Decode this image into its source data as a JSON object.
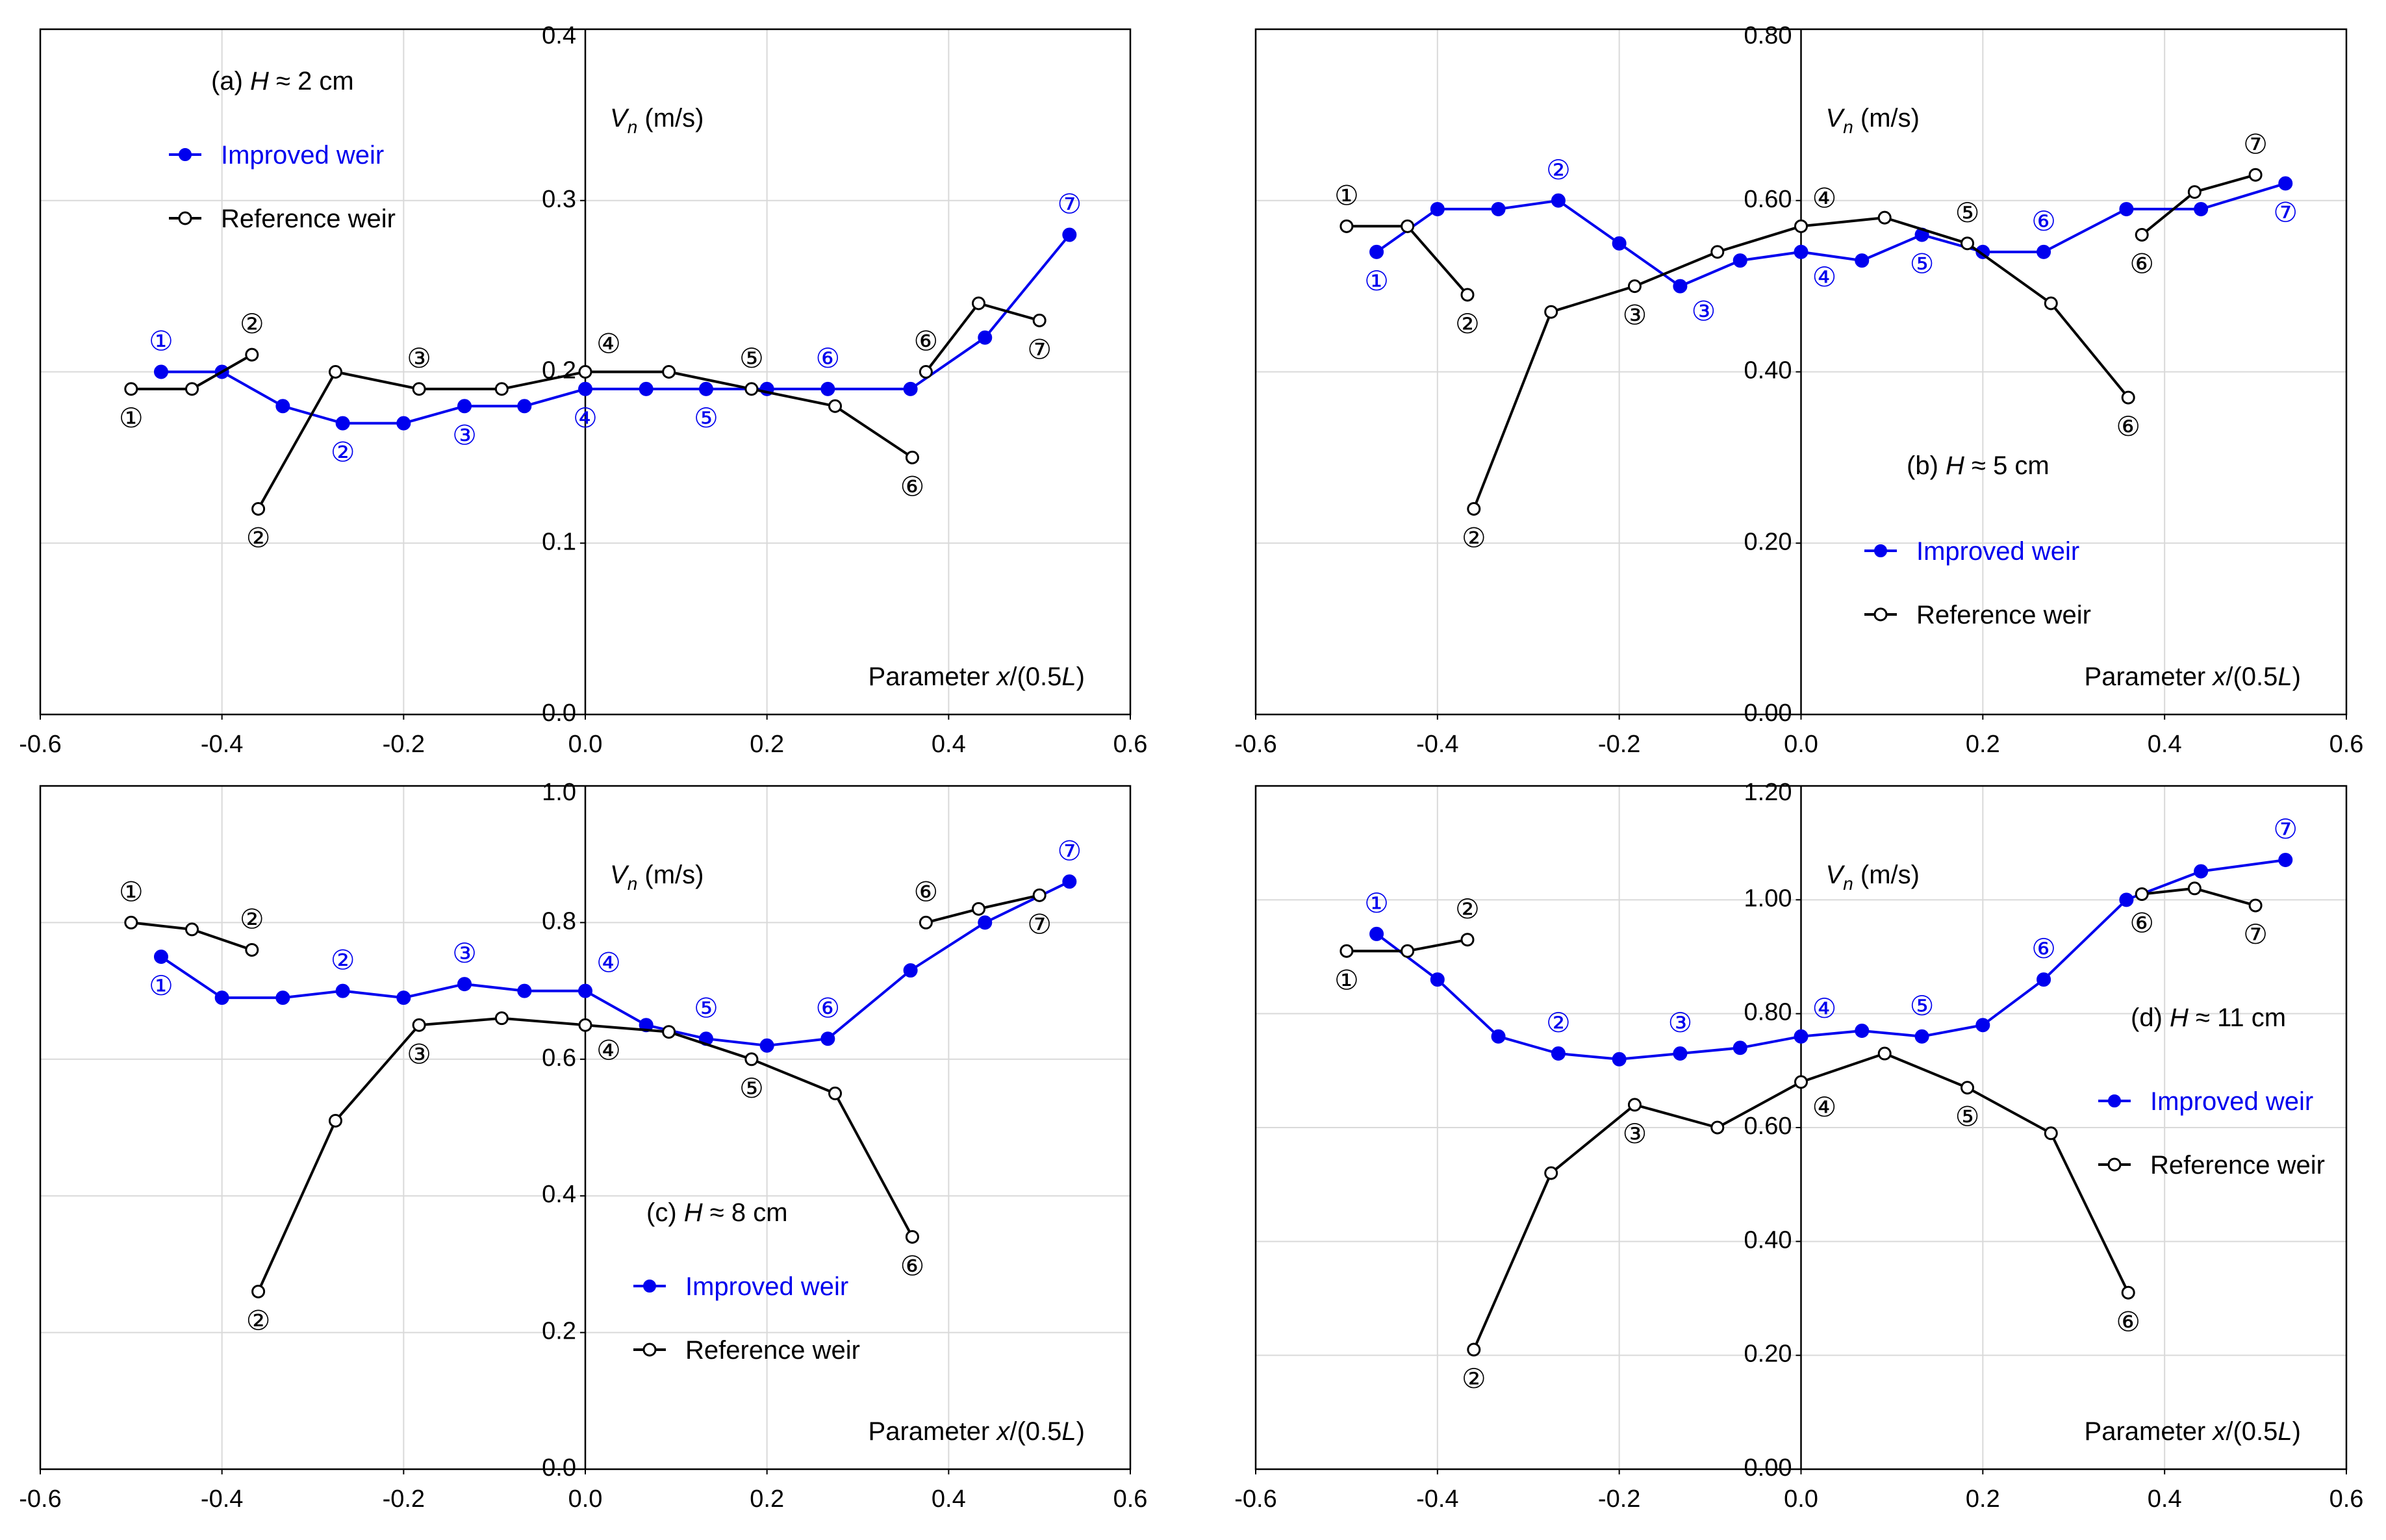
{
  "figure": {
    "x_axis_title_prefix": "Parameter ",
    "x_axis_title_var": "x",
    "x_axis_title_mid": "/(0.5",
    "x_axis_title_var2": "L",
    "x_axis_title_suffix": ")",
    "y_axis_title_var": "V",
    "y_axis_title_sub": "n",
    "y_axis_title_unit": " (m/s)",
    "legend_improved": "Improved weir",
    "legend_reference": "Reference weir",
    "colors": {
      "improved": "#0000ee",
      "reference": "#000000",
      "grid": "#d9d9d9",
      "frame": "#000000"
    }
  },
  "chart_data": [
    {
      "type": "line",
      "panel": "a",
      "title_prefix": "(a) ",
      "title_var": "H",
      "title_suffix": " ≈ 2 cm",
      "xlabel": "Parameter x/(0.5L)",
      "ylabel": "Vn (m/s)",
      "xlim": [
        -0.6,
        0.6
      ],
      "ylim": [
        0.0,
        0.4
      ],
      "x_ticks": [
        "-0.6",
        "-0.4",
        "-0.2",
        "0.0",
        "0.2",
        "0.4",
        "0.6"
      ],
      "y_ticks": [
        "0.0",
        "0.1",
        "0.2",
        "0.3",
        "0.4"
      ],
      "series": [
        {
          "name": "Improved weir",
          "color": "#0000ee",
          "marker": "filled",
          "x": [
            -0.467,
            -0.4,
            -0.333,
            -0.267,
            -0.2,
            -0.133,
            -0.067,
            0.0,
            0.067,
            0.133,
            0.2,
            0.267,
            0.358,
            0.44,
            0.533
          ],
          "y": [
            0.2,
            0.2,
            0.18,
            0.17,
            0.17,
            0.18,
            0.18,
            0.19,
            0.19,
            0.19,
            0.19,
            0.19,
            0.19,
            0.22,
            0.28
          ],
          "labels": [
            {
              "text": "①",
              "x": -0.467,
              "y": 0.2,
              "pos": "above"
            },
            {
              "text": "②",
              "x": -0.267,
              "y": 0.17,
              "pos": "below"
            },
            {
              "text": "③",
              "x": -0.133,
              "y": 0.18,
              "pos": "below"
            },
            {
              "text": "④",
              "x": 0.0,
              "y": 0.19,
              "pos": "below"
            },
            {
              "text": "⑤",
              "x": 0.133,
              "y": 0.19,
              "pos": "below"
            },
            {
              "text": "⑥",
              "x": 0.267,
              "y": 0.19,
              "pos": "above"
            },
            {
              "text": "⑦",
              "x": 0.533,
              "y": 0.28,
              "pos": "above"
            }
          ]
        },
        {
          "name": "Reference weir",
          "color": "#000000",
          "marker": "open",
          "segments": [
            {
              "x": [
                -0.5,
                -0.433,
                -0.367
              ],
              "y": [
                0.19,
                0.19,
                0.21
              ]
            },
            {
              "x": [
                -0.36,
                -0.275,
                -0.183,
                -0.092,
                0.0,
                0.092,
                0.183,
                0.275,
                0.36
              ],
              "y": [
                0.12,
                0.2,
                0.19,
                0.19,
                0.2,
                0.2,
                0.19,
                0.18,
                0.15
              ]
            },
            {
              "x": [
                0.375,
                0.433,
                0.5
              ],
              "y": [
                0.2,
                0.24,
                0.23
              ]
            }
          ],
          "labels": [
            {
              "text": "①",
              "x": -0.5,
              "y": 0.19,
              "pos": "below"
            },
            {
              "text": "②",
              "x": -0.367,
              "y": 0.21,
              "pos": "above"
            },
            {
              "text": "②",
              "x": -0.36,
              "y": 0.12,
              "pos": "below"
            },
            {
              "text": "③",
              "x": -0.183,
              "y": 0.19,
              "pos": "above"
            },
            {
              "text": "④",
              "x": 0.0,
              "y": 0.2,
              "pos": "above-right"
            },
            {
              "text": "⑤",
              "x": 0.183,
              "y": 0.19,
              "pos": "above"
            },
            {
              "text": "⑥",
              "x": 0.36,
              "y": 0.15,
              "pos": "below"
            },
            {
              "text": "⑥",
              "x": 0.375,
              "y": 0.2,
              "pos": "above"
            },
            {
              "text": "⑦",
              "x": 0.5,
              "y": 0.23,
              "pos": "below"
            }
          ]
        }
      ]
    },
    {
      "type": "line",
      "panel": "b",
      "title_prefix": "(b) ",
      "title_var": "H",
      "title_suffix": " ≈ 5 cm",
      "xlabel": "Parameter x/(0.5L)",
      "ylabel": "Vn (m/s)",
      "xlim": [
        -0.6,
        0.6
      ],
      "ylim": [
        0.0,
        0.8
      ],
      "x_ticks": [
        "-0.6",
        "-0.4",
        "-0.2",
        "0.0",
        "0.2",
        "0.4",
        "0.6"
      ],
      "y_ticks": [
        "0.00",
        "0.20",
        "0.40",
        "0.60",
        "0.80"
      ],
      "series": [
        {
          "name": "Improved weir",
          "color": "#0000ee",
          "marker": "filled",
          "x": [
            -0.467,
            -0.4,
            -0.333,
            -0.267,
            -0.2,
            -0.133,
            -0.067,
            0.0,
            0.067,
            0.133,
            0.2,
            0.267,
            0.358,
            0.44,
            0.533
          ],
          "y": [
            0.54,
            0.59,
            0.59,
            0.6,
            0.55,
            0.5,
            0.53,
            0.54,
            0.53,
            0.56,
            0.54,
            0.54,
            0.59,
            0.59,
            0.62
          ],
          "labels": [
            {
              "text": "①",
              "x": -0.467,
              "y": 0.54,
              "pos": "below"
            },
            {
              "text": "②",
              "x": -0.267,
              "y": 0.6,
              "pos": "above"
            },
            {
              "text": "③",
              "x": -0.133,
              "y": 0.5,
              "pos": "below-right"
            },
            {
              "text": "④",
              "x": 0.0,
              "y": 0.54,
              "pos": "below-right"
            },
            {
              "text": "⑤",
              "x": 0.133,
              "y": 0.56,
              "pos": "below"
            },
            {
              "text": "⑥",
              "x": 0.267,
              "y": 0.54,
              "pos": "above"
            },
            {
              "text": "⑦",
              "x": 0.533,
              "y": 0.62,
              "pos": "below"
            }
          ]
        },
        {
          "name": "Reference weir",
          "color": "#000000",
          "marker": "open",
          "segments": [
            {
              "x": [
                -0.5,
                -0.433,
                -0.367
              ],
              "y": [
                0.57,
                0.57,
                0.49
              ]
            },
            {
              "x": [
                -0.36,
                -0.275,
                -0.183,
                -0.092,
                0.0,
                0.092,
                0.183,
                0.275,
                0.36
              ],
              "y": [
                0.24,
                0.47,
                0.5,
                0.54,
                0.57,
                0.58,
                0.55,
                0.48,
                0.37
              ]
            },
            {
              "x": [
                0.375,
                0.433,
                0.5
              ],
              "y": [
                0.56,
                0.61,
                0.63
              ]
            }
          ],
          "labels": [
            {
              "text": "①",
              "x": -0.5,
              "y": 0.57,
              "pos": "above"
            },
            {
              "text": "②",
              "x": -0.367,
              "y": 0.49,
              "pos": "below"
            },
            {
              "text": "②",
              "x": -0.36,
              "y": 0.24,
              "pos": "below"
            },
            {
              "text": "③",
              "x": -0.183,
              "y": 0.5,
              "pos": "below"
            },
            {
              "text": "④",
              "x": 0.0,
              "y": 0.57,
              "pos": "above-right"
            },
            {
              "text": "⑤",
              "x": 0.183,
              "y": 0.55,
              "pos": "above"
            },
            {
              "text": "⑥",
              "x": 0.36,
              "y": 0.37,
              "pos": "below"
            },
            {
              "text": "⑥",
              "x": 0.375,
              "y": 0.56,
              "pos": "below"
            },
            {
              "text": "⑦",
              "x": 0.5,
              "y": 0.63,
              "pos": "above"
            }
          ]
        }
      ]
    },
    {
      "type": "line",
      "panel": "c",
      "title_prefix": "(c) ",
      "title_var": "H",
      "title_suffix": " ≈ 8 cm",
      "xlabel": "Parameter x/(0.5L)",
      "ylabel": "Vn (m/s)",
      "xlim": [
        -0.6,
        0.6
      ],
      "ylim": [
        0.0,
        1.0
      ],
      "x_ticks": [
        "-0.6",
        "-0.4",
        "-0.2",
        "0.0",
        "0.2",
        "0.4",
        "0.6"
      ],
      "y_ticks": [
        "0.0",
        "0.2",
        "0.4",
        "0.6",
        "0.8",
        "1.0"
      ],
      "series": [
        {
          "name": "Improved weir",
          "color": "#0000ee",
          "marker": "filled",
          "x": [
            -0.467,
            -0.4,
            -0.333,
            -0.267,
            -0.2,
            -0.133,
            -0.067,
            0.0,
            0.067,
            0.133,
            0.2,
            0.267,
            0.358,
            0.44,
            0.533
          ],
          "y": [
            0.75,
            0.69,
            0.69,
            0.7,
            0.69,
            0.71,
            0.7,
            0.7,
            0.65,
            0.63,
            0.62,
            0.63,
            0.73,
            0.8,
            0.86
          ],
          "labels": [
            {
              "text": "①",
              "x": -0.467,
              "y": 0.75,
              "pos": "below"
            },
            {
              "text": "②",
              "x": -0.267,
              "y": 0.7,
              "pos": "above"
            },
            {
              "text": "③",
              "x": -0.133,
              "y": 0.71,
              "pos": "above"
            },
            {
              "text": "④",
              "x": 0.0,
              "y": 0.7,
              "pos": "above-right"
            },
            {
              "text": "⑤",
              "x": 0.133,
              "y": 0.63,
              "pos": "above"
            },
            {
              "text": "⑥",
              "x": 0.267,
              "y": 0.63,
              "pos": "above"
            },
            {
              "text": "⑦",
              "x": 0.533,
              "y": 0.86,
              "pos": "above"
            }
          ]
        },
        {
          "name": "Reference weir",
          "color": "#000000",
          "marker": "open",
          "segments": [
            {
              "x": [
                -0.5,
                -0.433,
                -0.367
              ],
              "y": [
                0.8,
                0.79,
                0.76
              ]
            },
            {
              "x": [
                -0.36,
                -0.275,
                -0.183,
                -0.092,
                0.0,
                0.092,
                0.183,
                0.275,
                0.36
              ],
              "y": [
                0.26,
                0.51,
                0.65,
                0.66,
                0.65,
                0.64,
                0.6,
                0.55,
                0.34
              ]
            },
            {
              "x": [
                0.375,
                0.433,
                0.5
              ],
              "y": [
                0.8,
                0.82,
                0.84
              ]
            }
          ],
          "labels": [
            {
              "text": "①",
              "x": -0.5,
              "y": 0.8,
              "pos": "above"
            },
            {
              "text": "②",
              "x": -0.367,
              "y": 0.76,
              "pos": "above"
            },
            {
              "text": "②",
              "x": -0.36,
              "y": 0.26,
              "pos": "below"
            },
            {
              "text": "③",
              "x": -0.183,
              "y": 0.65,
              "pos": "below"
            },
            {
              "text": "④",
              "x": 0.0,
              "y": 0.65,
              "pos": "below-right"
            },
            {
              "text": "⑤",
              "x": 0.183,
              "y": 0.6,
              "pos": "below"
            },
            {
              "text": "⑥",
              "x": 0.36,
              "y": 0.34,
              "pos": "below"
            },
            {
              "text": "⑥",
              "x": 0.375,
              "y": 0.8,
              "pos": "above"
            },
            {
              "text": "⑦",
              "x": 0.5,
              "y": 0.84,
              "pos": "below"
            }
          ]
        }
      ]
    },
    {
      "type": "line",
      "panel": "d",
      "title_prefix": "(d) ",
      "title_var": "H",
      "title_suffix": " ≈ 11 cm",
      "xlabel": "Parameter x/(0.5L)",
      "ylabel": "Vn (m/s)",
      "xlim": [
        -0.6,
        0.6
      ],
      "ylim": [
        0.0,
        1.2
      ],
      "x_ticks": [
        "-0.6",
        "-0.4",
        "-0.2",
        "0.0",
        "0.2",
        "0.4",
        "0.6"
      ],
      "y_ticks": [
        "0.00",
        "0.20",
        "0.40",
        "0.60",
        "0.80",
        "1.00",
        "1.20"
      ],
      "series": [
        {
          "name": "Improved weir",
          "color": "#0000ee",
          "marker": "filled",
          "x": [
            -0.467,
            -0.4,
            -0.333,
            -0.267,
            -0.2,
            -0.133,
            -0.067,
            0.0,
            0.067,
            0.133,
            0.2,
            0.267,
            0.358,
            0.44,
            0.533
          ],
          "y": [
            0.94,
            0.86,
            0.76,
            0.73,
            0.72,
            0.73,
            0.74,
            0.76,
            0.77,
            0.76,
            0.78,
            0.86,
            1.0,
            1.05,
            1.07
          ],
          "labels": [
            {
              "text": "①",
              "x": -0.467,
              "y": 0.94,
              "pos": "above"
            },
            {
              "text": "②",
              "x": -0.267,
              "y": 0.73,
              "pos": "above"
            },
            {
              "text": "③",
              "x": -0.133,
              "y": 0.73,
              "pos": "above"
            },
            {
              "text": "④",
              "x": 0.0,
              "y": 0.76,
              "pos": "above-right"
            },
            {
              "text": "⑤",
              "x": 0.133,
              "y": 0.76,
              "pos": "above"
            },
            {
              "text": "⑥",
              "x": 0.267,
              "y": 0.86,
              "pos": "above"
            },
            {
              "text": "⑦",
              "x": 0.533,
              "y": 1.07,
              "pos": "above"
            }
          ]
        },
        {
          "name": "Reference weir",
          "color": "#000000",
          "marker": "open",
          "segments": [
            {
              "x": [
                -0.5,
                -0.433,
                -0.367
              ],
              "y": [
                0.91,
                0.91,
                0.93
              ]
            },
            {
              "x": [
                -0.36,
                -0.275,
                -0.183,
                -0.092,
                0.0,
                0.092,
                0.183,
                0.275,
                0.36
              ],
              "y": [
                0.21,
                0.52,
                0.64,
                0.6,
                0.68,
                0.73,
                0.67,
                0.59,
                0.31
              ]
            },
            {
              "x": [
                0.375,
                0.433,
                0.5
              ],
              "y": [
                1.01,
                1.02,
                0.99
              ]
            }
          ],
          "labels": [
            {
              "text": "①",
              "x": -0.5,
              "y": 0.91,
              "pos": "below"
            },
            {
              "text": "②",
              "x": -0.367,
              "y": 0.93,
              "pos": "above"
            },
            {
              "text": "②",
              "x": -0.36,
              "y": 0.21,
              "pos": "below"
            },
            {
              "text": "③",
              "x": -0.183,
              "y": 0.64,
              "pos": "below"
            },
            {
              "text": "④",
              "x": 0.0,
              "y": 0.68,
              "pos": "below-right"
            },
            {
              "text": "⑤",
              "x": 0.183,
              "y": 0.67,
              "pos": "below"
            },
            {
              "text": "⑥",
              "x": 0.36,
              "y": 0.31,
              "pos": "below"
            },
            {
              "text": "⑥",
              "x": 0.375,
              "y": 1.01,
              "pos": "below"
            },
            {
              "text": "⑦",
              "x": 0.5,
              "y": 0.99,
              "pos": "below"
            }
          ]
        }
      ]
    }
  ]
}
